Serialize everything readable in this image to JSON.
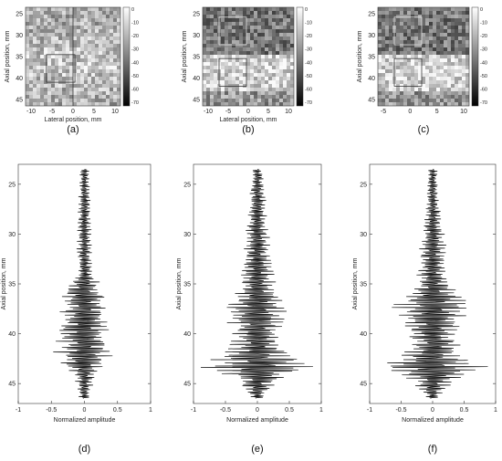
{
  "figure": {
    "top_panels": [
      {
        "label": "(a)",
        "xlabel": "Lateral position, mm",
        "ylabel": "Axial position, mm",
        "xticks": [
          "-10",
          "-5",
          "0",
          "5",
          "10"
        ],
        "yticks": [
          "25",
          "30",
          "35",
          "40",
          "45"
        ],
        "colorbar_ticks": [
          "0",
          "-10",
          "-20",
          "-30",
          "-40",
          "-50",
          "-60",
          "-70"
        ],
        "image": "ultrasound B-mode speckle image, bright band mid-depth, vertical line and one rectangle marker"
      },
      {
        "label": "(b)",
        "xlabel": "Lateral position, mm",
        "ylabel": "Axial position, mm",
        "xticks": [
          "-10",
          "-5",
          "0",
          "5",
          "10"
        ],
        "yticks": [
          "25",
          "30",
          "35",
          "40",
          "45"
        ],
        "colorbar_ticks": [
          "0",
          "-10",
          "-20",
          "-30",
          "-40",
          "-50",
          "-60",
          "-70"
        ],
        "image": "ultrasound B-mode speckle image, bright lower region, two rectangle markers"
      },
      {
        "label": "(c)",
        "xlabel": "",
        "ylabel": "Axial position, mm",
        "xticks": [
          "-5",
          "0",
          "5",
          "10"
        ],
        "yticks": [
          "25",
          "30",
          "35",
          "40",
          "45"
        ],
        "colorbar_ticks": [
          "0",
          "-10",
          "-20",
          "-30",
          "-40",
          "-50",
          "-60",
          "-70"
        ],
        "image": "ultrasound B-mode speckle image, bright lower region, two rectangle markers"
      }
    ],
    "bottom_panels": [
      {
        "label": "(d)",
        "xlabel": "Normalized amplitude",
        "ylabel": "Axial position, mm",
        "xticks": [
          "-1",
          "-0.5",
          "0",
          "0.5",
          "1"
        ],
        "yticks": [
          "25",
          "30",
          "35",
          "40",
          "45"
        ]
      },
      {
        "label": "(e)",
        "xlabel": "Normalized amplitude",
        "ylabel": "Axial position, mm",
        "xticks": [
          "-1",
          "-0.5",
          "0",
          "0.5",
          "1"
        ],
        "yticks": [
          "25",
          "30",
          "35",
          "40",
          "45"
        ]
      },
      {
        "label": "(f)",
        "xlabel": "Normalized amplitude",
        "ylabel": "Axial position, mm",
        "xticks": [
          "-1",
          "-0.5",
          "0",
          "0.5",
          "1"
        ],
        "yticks": [
          "25",
          "30",
          "35",
          "40",
          "45"
        ]
      }
    ]
  },
  "chart_data": [
    {
      "type": "line",
      "panel": "(d)",
      "xlabel": "Normalized amplitude",
      "ylabel": "Axial position, mm",
      "xlim": [
        -1,
        1
      ],
      "ylim": [
        23,
        47
      ],
      "y_reversed": true,
      "envelope": {
        "y": [
          23.5,
          30,
          34,
          35.5,
          37,
          39,
          41,
          42,
          43,
          44,
          46,
          47
        ],
        "amplitude": [
          0.08,
          0.12,
          0.12,
          0.35,
          0.4,
          0.42,
          0.45,
          0.48,
          0.42,
          0.18,
          0.1,
          0.08
        ]
      }
    },
    {
      "type": "line",
      "panel": "(e)",
      "xlabel": "Normalized amplitude",
      "ylabel": "Axial position, mm",
      "xlim": [
        -1,
        1
      ],
      "ylim": [
        23,
        47
      ],
      "y_reversed": true,
      "envelope": {
        "y": [
          23.5,
          27,
          30,
          33,
          35,
          36.5,
          37.5,
          39,
          40.5,
          42,
          43.3,
          44.5,
          46,
          47
        ],
        "amplitude": [
          0.08,
          0.15,
          0.2,
          0.25,
          0.3,
          0.45,
          0.52,
          0.48,
          0.42,
          0.55,
          1.0,
          0.4,
          0.15,
          0.1
        ]
      }
    },
    {
      "type": "line",
      "panel": "(f)",
      "xlabel": "Normalized amplitude",
      "ylabel": "Axial position, mm",
      "xlim": [
        -1,
        1
      ],
      "ylim": [
        23,
        47
      ],
      "y_reversed": true,
      "envelope": {
        "y": [
          23.5,
          27,
          30,
          33,
          35,
          36.5,
          37.5,
          39,
          40.5,
          42,
          43.3,
          44.5,
          46,
          47
        ],
        "amplitude": [
          0.08,
          0.12,
          0.2,
          0.25,
          0.3,
          0.55,
          0.72,
          0.5,
          0.42,
          0.55,
          0.98,
          0.45,
          0.15,
          0.1
        ]
      }
    }
  ]
}
